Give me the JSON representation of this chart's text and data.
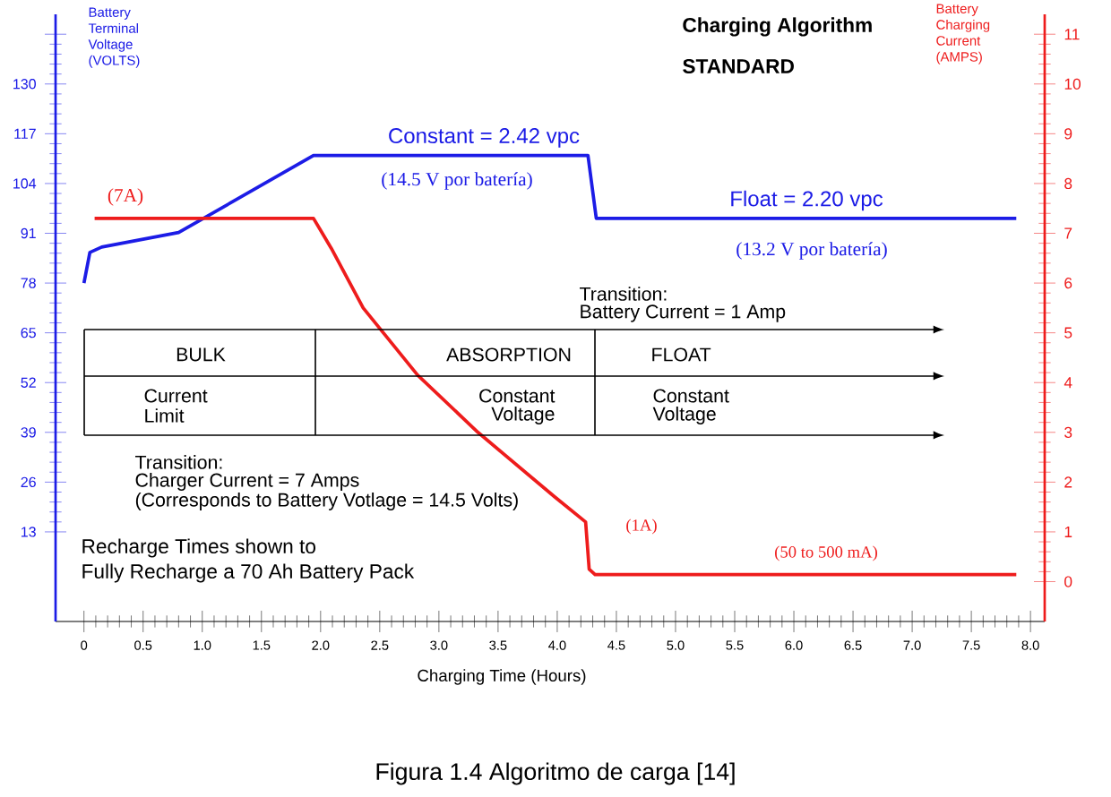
{
  "chart_data": {
    "type": "line",
    "title": "Charging Algorithm",
    "subtitle": "STANDARD",
    "xlabel": "Charging Time (Hours)",
    "ylabel": "Battery Terminal Voltage (VOLTS)",
    "y2label": "Battery Charging Current (AMPS)",
    "xlim": [
      -0.24,
      8.12
    ],
    "ylim": [
      -10.4,
      148.2
    ],
    "y2lim": [
      -0.8,
      11.4
    ],
    "xticks": [
      0,
      {
        "value": 0.5,
        "label": "0.5"
      },
      {
        "value": 1,
        "label": "1.0"
      },
      {
        "value": 1.5,
        "label": "1.5"
      },
      {
        "value": 2,
        "label": "2.0"
      },
      {
        "value": 2.5,
        "label": "2.5"
      },
      {
        "value": 3,
        "label": "3.0"
      },
      {
        "value": 3.5,
        "label": "3.5"
      },
      {
        "value": 4,
        "label": "4.0"
      },
      {
        "value": 4.5,
        "label": "4.5"
      },
      {
        "value": 5,
        "label": "5.0"
      },
      {
        "value": 5.5,
        "label": "5.5"
      },
      {
        "value": 6,
        "label": "6.0"
      },
      {
        "value": 6.5,
        "label": "6.5"
      },
      {
        "value": 7,
        "label": "7.0"
      },
      {
        "value": 7.5,
        "label": "7.5"
      },
      {
        "value": 8,
        "label": "8.0"
      }
    ],
    "yticks": [
      13,
      26,
      39,
      52,
      65,
      78,
      91,
      104,
      117,
      130,
      {
        "value": 143,
        "label": null
      }
    ],
    "y2ticks": [
      0,
      1,
      2,
      3,
      4,
      5,
      6,
      7,
      8,
      9,
      10,
      11
    ],
    "marker": "none",
    "line_style": "solid",
    "series": [
      {
        "color": "#1c1ce6",
        "x": [
          0,
          0.05,
          0.15,
          0.8,
          1.94,
          4.26,
          4.33,
          7.88
        ],
        "values": [
          78,
          86,
          87.4,
          91.2,
          111.3,
          111.3,
          94.9,
          94.9
        ]
      },
      {
        "color": "#ee1c1c",
        "axis": "y2",
        "x": [
          0.09,
          1.94,
          2.09,
          2.36,
          2.82,
          3.33,
          3.98,
          4.24,
          4.27,
          4.32,
          7.88
        ],
        "values": [
          7.3,
          7.3,
          6.7,
          5.5,
          4.15,
          3.0,
          1.7,
          1.2,
          0.25,
          0.14,
          0.14
        ]
      }
    ],
    "annotations": [
      "Constant = 2.42 vpc",
      "(14.5 V por batería)",
      "Float = 2.20 vpc",
      "(13.2  V por batería)",
      "(7A)",
      "(1A)",
      "(50 to 500 mA)",
      "Transition:",
      "Battery Current =  1 Amp",
      "BULK",
      "ABSORPTION",
      "FLOAT",
      "Current",
      "Limit",
      "Constant",
      "Voltage",
      "Constant",
      "Voltage",
      "Transition:",
      "Charger Current =  7   Amps",
      "(Corresponds to Battery Votlage = 14.5 Volts)",
      "Recharge Times shown to",
      "Fully Recharge a 70 Ah Battery Pack",
      "Figura 1.4 Algoritmo de carga [14]"
    ]
  }
}
